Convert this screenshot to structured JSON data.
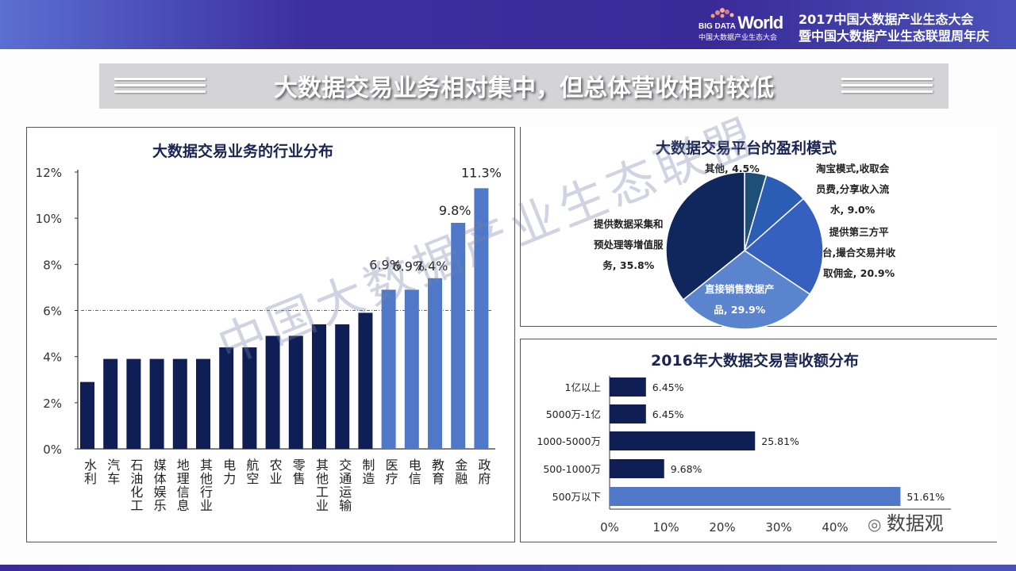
{
  "header": {
    "logo_text": "BIG DATA World",
    "logo_subtitle": "中国大数据产业生态大会",
    "event_line1": "2017中国大数据产业生态大会",
    "event_line2": "暨中国大数据产业生态联盟周年庆"
  },
  "slide_title": "大数据交易业务相对集中，但总体营收相对较低",
  "watermark": "中国大数据产业生态联盟",
  "source_badge": "数据观",
  "colors": {
    "dark": "#0f1f55",
    "light": "#4f79c8",
    "header": "#3a2a98"
  },
  "chart_data": [
    {
      "type": "bar",
      "title": "大数据交易业务的行业分布",
      "categories": [
        "水利",
        "汽车",
        "石油化工",
        "媒体娱乐",
        "地理信息",
        "其他行业",
        "电力",
        "航空",
        "农业",
        "零售",
        "其他工业",
        "交通运输",
        "制造",
        "医疗",
        "电信",
        "教育",
        "金融",
        "政府"
      ],
      "values": [
        2.9,
        3.9,
        3.9,
        3.9,
        3.9,
        3.9,
        4.4,
        4.4,
        4.9,
        4.9,
        5.4,
        5.4,
        5.9,
        6.9,
        6.9,
        7.4,
        9.8,
        11.3
      ],
      "highlight": [
        false,
        false,
        false,
        false,
        false,
        false,
        false,
        false,
        false,
        false,
        false,
        false,
        false,
        true,
        true,
        true,
        true,
        true
      ],
      "data_labels": [
        "",
        "",
        "",
        "",
        "",
        "",
        "",
        "",
        "",
        "",
        "",
        "",
        "",
        "6.9%",
        "6.9%",
        "7.4%",
        "9.8%",
        "11.3%"
      ],
      "yticks": [
        "0%",
        "2%",
        "4%",
        "6%",
        "8%",
        "10%",
        "12%"
      ],
      "ylim": [
        0,
        12
      ],
      "reference_line": 6,
      "xlabel": "",
      "ylabel": ""
    },
    {
      "type": "pie",
      "title": "大数据交易平台的盈利模式",
      "slices": [
        {
          "label": "其他, 4.5%",
          "value": 4.5,
          "color": "#1d4f78"
        },
        {
          "label": "淘宝模式,收取会员费,分享收入流水, 9.0%",
          "value": 9.0,
          "color": "#2c5db5"
        },
        {
          "label": "提供第三方平台,撮合交易并收取佣金, 20.9%",
          "value": 20.9,
          "color": "#3560c0"
        },
        {
          "label": "直接销售数据产品, 29.9%",
          "value": 29.9,
          "color": "#5b84cf"
        },
        {
          "label": "提供数据采集和预处理等增值服务, 35.8%",
          "value": 35.8,
          "color": "#10275e"
        }
      ],
      "label_lines": {
        "other": [
          "其他, 4.5%"
        ],
        "taobao": [
          "淘宝模式,收取会",
          "员费,分享收入流",
          "水, 9.0%"
        ],
        "platform": [
          "提供第三方平",
          "台,撮合交易并收",
          "取佣金, 20.9%"
        ],
        "direct": [
          "直接销售数据产",
          "品, 29.9%"
        ],
        "collect": [
          "提供数据采集和",
          "预处理等增值服",
          "务, 35.8%"
        ]
      }
    },
    {
      "type": "bar",
      "orientation": "horizontal",
      "title": "2016年大数据交易营收额分布",
      "categories": [
        "1亿以上",
        "5000万-1亿",
        "1000-5000万",
        "500-1000万",
        "500万以下"
      ],
      "values": [
        6.45,
        6.45,
        25.81,
        9.68,
        51.61
      ],
      "data_labels": [
        "6.45%",
        "6.45%",
        "25.81%",
        "9.68%",
        "51.61%"
      ],
      "highlight": [
        false,
        false,
        false,
        false,
        true
      ],
      "xticks": [
        "0%",
        "10%",
        "20%",
        "30%",
        "40%"
      ],
      "xlim": [
        0,
        60
      ]
    }
  ]
}
